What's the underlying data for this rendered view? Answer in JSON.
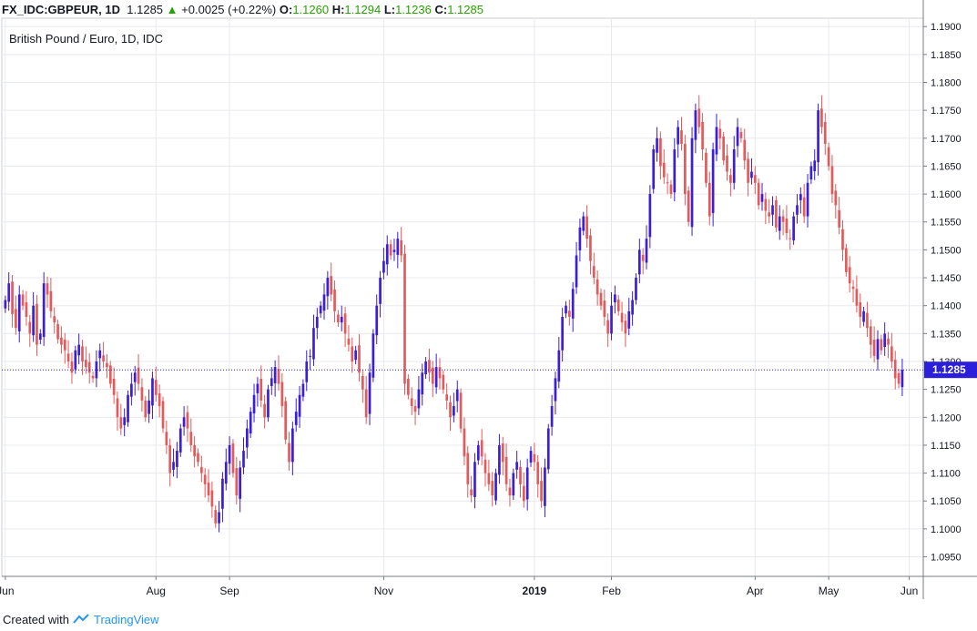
{
  "header": {
    "symbol": "FX_IDC:GBPEUR, 1D",
    "last": "1.1285",
    "change_arrow": "▲",
    "change": "+0.0025 (+0.22%)",
    "open_label": "O:",
    "open": "1.1260",
    "high_label": "H:",
    "high": "1.1294",
    "low_label": "L:",
    "low": "1.1236",
    "close_label": "C:",
    "close": "1.1285"
  },
  "footer": {
    "created_with": "Created with",
    "brand": "TradingView"
  },
  "colors": {
    "up": "#3a1fd6",
    "down": "#e35a5a",
    "grid": "#e6e9ee",
    "axis": "#787b86",
    "price_label_bg": "#2b1fd9"
  },
  "chart_data": {
    "type": "candlestick",
    "title": "British Pound / Euro, 1D, IDC",
    "ylim": [
      1.0915,
      1.1915
    ],
    "y_ticks": [
      "1.0950",
      "1.1000",
      "1.1050",
      "1.1100",
      "1.1150",
      "1.1200",
      "1.1250",
      "1.1300",
      "1.1350",
      "1.1400",
      "1.1450",
      "1.1500",
      "1.1550",
      "1.1600",
      "1.1650",
      "1.1700",
      "1.1750",
      "1.1800",
      "1.1850",
      "1.1900"
    ],
    "x_ticks": [
      {
        "label": "Jun",
        "bar": 0
      },
      {
        "label": "Aug",
        "bar": 43
      },
      {
        "label": "Sep",
        "bar": 64
      },
      {
        "label": "Nov",
        "bar": 108
      },
      {
        "label": "2019",
        "bar": 151,
        "bold": true
      },
      {
        "label": "Feb",
        "bar": 173
      },
      {
        "label": "Apr",
        "bar": 214
      },
      {
        "label": "May",
        "bar": 235
      },
      {
        "label": "Jun",
        "bar": 258
      }
    ],
    "current_price": 1.1285,
    "current_price_label": "1.1285",
    "closes": [
      1.141,
      1.144,
      1.1385,
      1.136,
      1.142,
      1.14,
      1.138,
      1.135,
      1.14,
      1.133,
      1.135,
      1.144,
      1.142,
      1.139,
      1.137,
      1.134,
      1.133,
      1.132,
      1.13,
      1.128,
      1.132,
      1.133,
      1.13,
      1.129,
      1.128,
      1.127,
      1.13,
      1.132,
      1.13,
      1.129,
      1.126,
      1.124,
      1.12,
      1.118,
      1.12,
      1.124,
      1.126,
      1.128,
      1.126,
      1.123,
      1.12,
      1.123,
      1.127,
      1.124,
      1.122,
      1.118,
      1.115,
      1.11,
      1.112,
      1.114,
      1.118,
      1.12,
      1.118,
      1.115,
      1.113,
      1.112,
      1.11,
      1.108,
      1.106,
      1.104,
      1.101,
      1.103,
      1.109,
      1.112,
      1.115,
      1.11,
      1.106,
      1.111,
      1.114,
      1.118,
      1.121,
      1.124,
      1.126,
      1.123,
      1.12,
      1.125,
      1.127,
      1.129,
      1.126,
      1.122,
      1.116,
      1.112,
      1.118,
      1.121,
      1.124,
      1.126,
      1.13,
      1.131,
      1.136,
      1.138,
      1.14,
      1.142,
      1.145,
      1.142,
      1.139,
      1.137,
      1.138,
      1.135,
      1.133,
      1.13,
      1.132,
      1.128,
      1.125,
      1.12,
      1.128,
      1.135,
      1.14,
      1.145,
      1.148,
      1.151,
      1.149,
      1.15,
      1.152,
      1.149,
      1.126,
      1.124,
      1.122,
      1.121,
      1.125,
      1.128,
      1.13,
      1.128,
      1.126,
      1.129,
      1.127,
      1.125,
      1.123,
      1.12,
      1.122,
      1.125,
      1.118,
      1.113,
      1.108,
      1.106,
      1.112,
      1.115,
      1.113,
      1.11,
      1.108,
      1.106,
      1.11,
      1.115,
      1.112,
      1.108,
      1.106,
      1.11,
      1.112,
      1.108,
      1.105,
      1.111,
      1.114,
      1.112,
      1.108,
      1.105,
      1.111,
      1.118,
      1.122,
      1.127,
      1.132,
      1.138,
      1.14,
      1.138,
      1.143,
      1.149,
      1.154,
      1.156,
      1.152,
      1.148,
      1.145,
      1.142,
      1.14,
      1.138,
      1.135,
      1.14,
      1.142,
      1.139,
      1.137,
      1.135,
      1.139,
      1.141,
      1.145,
      1.15,
      1.148,
      1.152,
      1.16,
      1.168,
      1.17,
      1.165,
      1.163,
      1.162,
      1.16,
      1.168,
      1.172,
      1.169,
      1.16,
      1.155,
      1.17,
      1.175,
      1.172,
      1.168,
      1.162,
      1.156,
      1.168,
      1.172,
      1.17,
      1.166,
      1.164,
      1.162,
      1.168,
      1.172,
      1.17,
      1.166,
      1.162,
      1.164,
      1.162,
      1.158,
      1.16,
      1.157,
      1.156,
      1.158,
      1.154,
      1.156,
      1.155,
      1.153,
      1.152,
      1.156,
      1.158,
      1.16,
      1.156,
      1.162,
      1.165,
      1.166,
      1.175,
      1.172,
      1.169,
      1.165,
      1.16,
      1.158,
      1.154,
      1.15,
      1.146,
      1.144,
      1.143,
      1.14,
      1.138,
      1.139,
      1.136,
      1.133,
      1.131,
      1.134,
      1.132,
      1.135,
      1.133,
      1.13,
      1.127,
      1.126,
      1.1285
    ]
  }
}
